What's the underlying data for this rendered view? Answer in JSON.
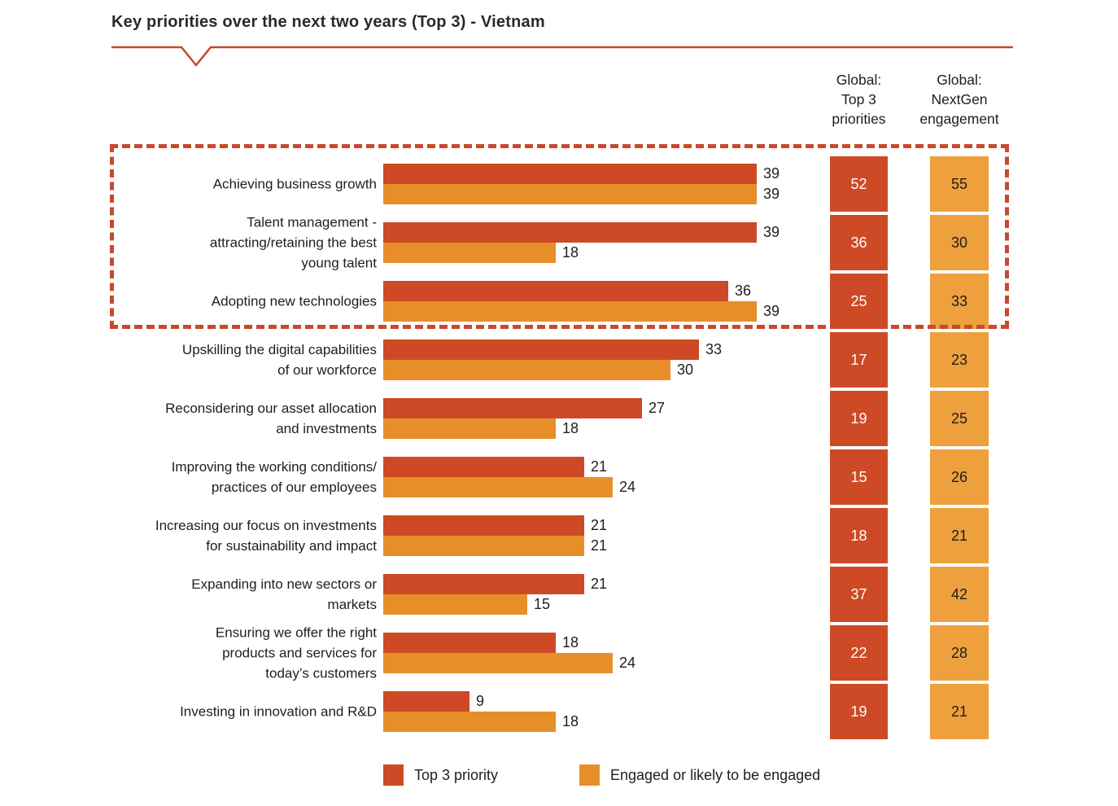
{
  "title": "Key priorities over the next two years (Top 3) - Vietnam",
  "column_headers": {
    "global_top3": "Global:\nTop 3\npriorities",
    "global_nextgen": "Global:\nNextGen\nengagement"
  },
  "legend": [
    {
      "label": "Top 3 priority",
      "color": "#CE4A26"
    },
    {
      "label": "Engaged or likely to be engaged",
      "color": "#E88E28"
    }
  ],
  "colors": {
    "top3": "#CE4A26",
    "engaged": "#E88E28",
    "nextgen_box": "#EDA03C",
    "dashed_border": "#C8492B",
    "underline": "#C44A28",
    "text": "#1e1e1e"
  },
  "chart_data": {
    "type": "bar",
    "orientation": "horizontal",
    "title": "Key priorities over the next two years (Top 3) - Vietnam",
    "xlim": [
      0,
      39
    ],
    "grid": false,
    "legend_position": "bottom",
    "series_names": [
      "Top 3 priority",
      "Engaged or likely to be engaged"
    ],
    "extra_columns": [
      "Global: Top 3 priorities",
      "Global: NextGen engagement"
    ],
    "highlight": "dashed rectangle around top 3 rows",
    "rows": [
      {
        "label": "Achieving business growth",
        "top3": 39,
        "engaged": 39,
        "global_top3": 52,
        "global_nextgen": 55
      },
      {
        "label": "Talent management -\nattracting/retaining the best\nyoung talent",
        "top3": 39,
        "engaged": 18,
        "global_top3": 36,
        "global_nextgen": 30
      },
      {
        "label": "Adopting new technologies",
        "top3": 36,
        "engaged": 39,
        "global_top3": 25,
        "global_nextgen": 33
      },
      {
        "label": "Upskilling the digital capabilities\nof our workforce",
        "top3": 33,
        "engaged": 30,
        "global_top3": 17,
        "global_nextgen": 23
      },
      {
        "label": "Reconsidering our asset allocation\nand investments",
        "top3": 27,
        "engaged": 18,
        "global_top3": 19,
        "global_nextgen": 25
      },
      {
        "label": "Improving the working conditions/\npractices of our employees",
        "top3": 21,
        "engaged": 24,
        "global_top3": 15,
        "global_nextgen": 26
      },
      {
        "label": "Increasing our focus on investments\nfor sustainability and impact",
        "top3": 21,
        "engaged": 21,
        "global_top3": 18,
        "global_nextgen": 21
      },
      {
        "label": "Expanding into new sectors or\nmarkets",
        "top3": 21,
        "engaged": 15,
        "global_top3": 37,
        "global_nextgen": 42
      },
      {
        "label": "Ensuring we offer the right\nproducts and services for\ntoday’s customers",
        "top3": 18,
        "engaged": 24,
        "global_top3": 22,
        "global_nextgen": 28
      },
      {
        "label": "Investing in innovation and R&D",
        "top3": 9,
        "engaged": 18,
        "global_top3": 19,
        "global_nextgen": 21
      }
    ]
  }
}
